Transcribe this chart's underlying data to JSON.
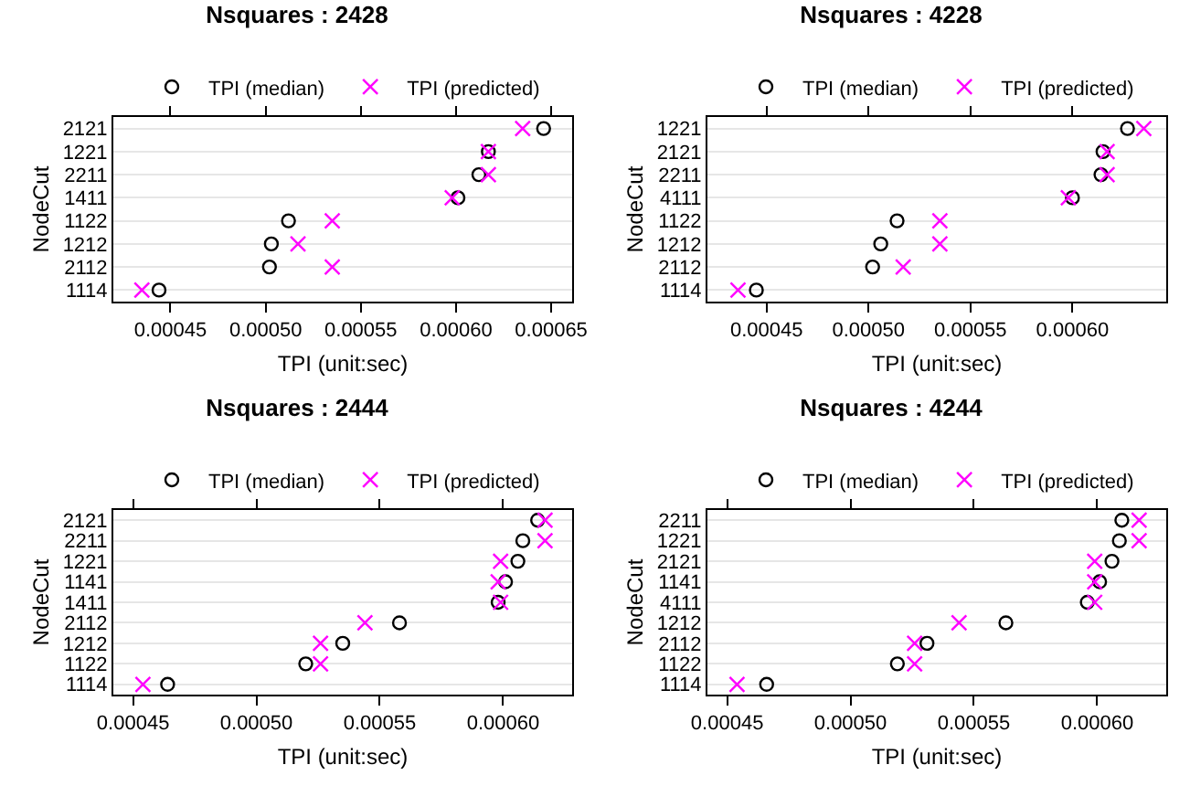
{
  "chart_data": [
    {
      "type": "scatter",
      "orientation": "horizontal",
      "title": "Nsquares : 2428",
      "xlabel": "TPI (unit:sec)",
      "ylabel": "NodeCut",
      "legend": "top",
      "grid": "y",
      "categories": [
        "2121",
        "1221",
        "2211",
        "1411",
        "1122",
        "1212",
        "2112",
        "1114"
      ],
      "xlim": [
        0.00042,
        0.000661
      ],
      "xticks": [
        {
          "value": 0.00045,
          "label": "0.00045"
        },
        {
          "value": 0.0005,
          "label": "0.00050"
        },
        {
          "value": 0.00055,
          "label": "0.00055"
        },
        {
          "value": 0.0006,
          "label": "0.00060"
        },
        {
          "value": 0.00065,
          "label": "0.00065"
        }
      ],
      "series": [
        {
          "name": "TPI (median)",
          "color": "#000000",
          "marker": "circle",
          "values": [
            0.000646,
            0.000617,
            0.000612,
            0.000601,
            0.000512,
            0.000503,
            0.000502,
            0.000444
          ]
        },
        {
          "name": "TPI (predicted)",
          "color": "#ff00ff",
          "marker": "cross",
          "values": [
            0.000635,
            0.000617,
            0.000617,
            0.000598,
            0.000535,
            0.000517,
            0.000535,
            0.000435
          ]
        }
      ]
    },
    {
      "type": "scatter",
      "orientation": "horizontal",
      "title": "Nsquares : 4228",
      "xlabel": "TPI (unit:sec)",
      "ylabel": "NodeCut",
      "legend": "top",
      "grid": "y",
      "categories": [
        "1221",
        "2121",
        "2211",
        "4111",
        "1122",
        "1212",
        "2112",
        "1114"
      ],
      "xlim": [
        0.000421,
        0.000646
      ],
      "xticks": [
        {
          "value": 0.00045,
          "label": "0.00045"
        },
        {
          "value": 0.0005,
          "label": "0.00050"
        },
        {
          "value": 0.00055,
          "label": "0.00055"
        },
        {
          "value": 0.0006,
          "label": "0.00060"
        }
      ],
      "series": [
        {
          "name": "TPI (median)",
          "color": "#000000",
          "marker": "circle",
          "values": [
            0.000627,
            0.000615,
            0.000614,
            0.0006,
            0.000514,
            0.000506,
            0.000502,
            0.000445
          ]
        },
        {
          "name": "TPI (predicted)",
          "color": "#ff00ff",
          "marker": "cross",
          "values": [
            0.000635,
            0.000617,
            0.000617,
            0.000598,
            0.000535,
            0.000535,
            0.000517,
            0.000436
          ]
        }
      ]
    },
    {
      "type": "scatter",
      "orientation": "horizontal",
      "title": "Nsquares : 2444",
      "xlabel": "TPI (unit:sec)",
      "ylabel": "NodeCut",
      "legend": "top",
      "grid": "y",
      "categories": [
        "2121",
        "2211",
        "1221",
        "1141",
        "1411",
        "2112",
        "1212",
        "1122",
        "1114"
      ],
      "xlim": [
        0.000442,
        0.000628
      ],
      "xticks": [
        {
          "value": 0.00045,
          "label": "0.00045"
        },
        {
          "value": 0.0005,
          "label": "0.00050"
        },
        {
          "value": 0.00055,
          "label": "0.00055"
        },
        {
          "value": 0.0006,
          "label": "0.00060"
        }
      ],
      "series": [
        {
          "name": "TPI (median)",
          "color": "#000000",
          "marker": "circle",
          "values": [
            0.000614,
            0.000608,
            0.000606,
            0.000601,
            0.000598,
            0.000558,
            0.000535,
            0.00052,
            0.000464
          ]
        },
        {
          "name": "TPI (predicted)",
          "color": "#ff00ff",
          "marker": "cross",
          "values": [
            0.000617,
            0.000617,
            0.000599,
            0.000598,
            0.000599,
            0.000544,
            0.000526,
            0.000526,
            0.000454
          ]
        }
      ]
    },
    {
      "type": "scatter",
      "orientation": "horizontal",
      "title": "Nsquares : 4244",
      "xlabel": "TPI (unit:sec)",
      "ylabel": "NodeCut",
      "legend": "top",
      "grid": "y",
      "categories": [
        "2211",
        "1221",
        "2121",
        "1141",
        "4111",
        "1212",
        "2112",
        "1122",
        "1114"
      ],
      "xlim": [
        0.000442,
        0.000628
      ],
      "xticks": [
        {
          "value": 0.00045,
          "label": "0.00045"
        },
        {
          "value": 0.0005,
          "label": "0.00050"
        },
        {
          "value": 0.00055,
          "label": "0.00055"
        },
        {
          "value": 0.0006,
          "label": "0.00060"
        }
      ],
      "series": [
        {
          "name": "TPI (median)",
          "color": "#000000",
          "marker": "circle",
          "values": [
            0.00061,
            0.000609,
            0.000606,
            0.000601,
            0.000596,
            0.000563,
            0.000531,
            0.000519,
            0.000466
          ]
        },
        {
          "name": "TPI (predicted)",
          "color": "#ff00ff",
          "marker": "cross",
          "values": [
            0.000617,
            0.000617,
            0.000599,
            0.000599,
            0.000599,
            0.000544,
            0.000526,
            0.000526,
            0.000454
          ]
        }
      ]
    }
  ]
}
